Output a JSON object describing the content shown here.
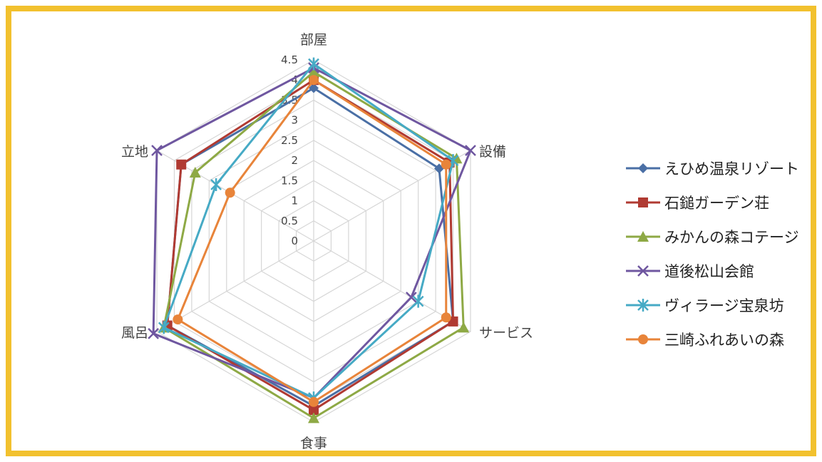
{
  "chart_data": {
    "type": "radar",
    "axes": [
      "部屋",
      "設備",
      "サービス",
      "食事",
      "風呂",
      "立地"
    ],
    "rmin": 0,
    "rmax": 4.5,
    "ticks": [
      "0",
      "0.5",
      "1",
      "1.5",
      "2",
      "2.5",
      "3",
      "3.5",
      "4",
      "4.5"
    ],
    "grid": true,
    "legend_position": "right",
    "series": [
      {
        "name": "えひめ温泉リゾート",
        "values": [
          3.8,
          3.6,
          4.0,
          4.1,
          4.2,
          3.8
        ],
        "color": "#4a6fa5",
        "marker": "diamond"
      },
      {
        "name": "石鎚ガーデン荘",
        "values": [
          4.0,
          3.9,
          4.0,
          4.2,
          4.2,
          3.8
        ],
        "color": "#b03a32",
        "marker": "square"
      },
      {
        "name": "みかんの森コテージ",
        "values": [
          4.2,
          4.1,
          4.3,
          4.4,
          4.3,
          3.4
        ],
        "color": "#8ea945",
        "marker": "triangle"
      },
      {
        "name": "道後松山会館",
        "values": [
          4.3,
          4.5,
          2.8,
          3.9,
          4.6,
          4.5
        ],
        "color": "#6f57a0",
        "marker": "x"
      },
      {
        "name": "ヴィラージ宝泉坊",
        "values": [
          4.4,
          4.0,
          3.0,
          3.9,
          4.3,
          2.8
        ],
        "color": "#46aac5",
        "marker": "star"
      },
      {
        "name": "三崎ふれあいの森",
        "values": [
          4.0,
          3.8,
          3.8,
          4.0,
          3.9,
          2.4
        ],
        "color": "#e8843a",
        "marker": "circle"
      }
    ]
  }
}
